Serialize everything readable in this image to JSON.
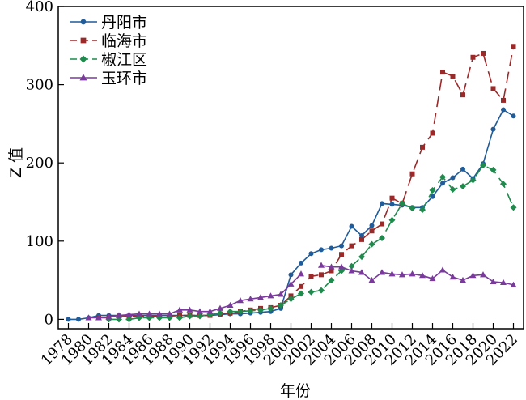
{
  "chart_data": {
    "type": "line",
    "title": "",
    "xlabel": "年份",
    "ylabel": "Z 值",
    "xlim": [
      1977,
      2023
    ],
    "ylim": [
      -12,
      400
    ],
    "y_ticks": [
      0,
      100,
      200,
      300,
      400
    ],
    "x_ticks": [
      1978,
      1980,
      1982,
      1984,
      1986,
      1988,
      1990,
      1992,
      1994,
      1996,
      1998,
      2000,
      2002,
      2004,
      2006,
      2008,
      2010,
      2012,
      2014,
      2016,
      2018,
      2020,
      2022
    ],
    "grid": false,
    "legend_position": "top-left",
    "series": [
      {
        "name": "丹阳市",
        "color": "#1f5c99",
        "marker": "circle",
        "line_style": "solid",
        "points": [
          [
            1978,
            0
          ],
          [
            1979,
            0
          ],
          [
            1980,
            2
          ],
          [
            1981,
            5
          ],
          [
            1982,
            5
          ],
          [
            1983,
            5
          ],
          [
            1984,
            5
          ],
          [
            1985,
            5
          ],
          [
            1986,
            5
          ],
          [
            1987,
            5
          ],
          [
            1988,
            5
          ],
          [
            1989,
            5
          ],
          [
            1990,
            5
          ],
          [
            1991,
            5
          ],
          [
            1992,
            5
          ],
          [
            1993,
            6
          ],
          [
            1994,
            7
          ],
          [
            1995,
            7
          ],
          [
            1996,
            8
          ],
          [
            1997,
            9
          ],
          [
            1998,
            10
          ],
          [
            1999,
            14
          ],
          [
            2000,
            57
          ],
          [
            2001,
            72
          ],
          [
            2002,
            84
          ],
          [
            2003,
            89
          ],
          [
            2004,
            91
          ],
          [
            2005,
            94
          ],
          [
            2006,
            119
          ],
          [
            2007,
            107
          ],
          [
            2008,
            120
          ],
          [
            2009,
            148
          ],
          [
            2010,
            147
          ],
          [
            2011,
            146
          ],
          [
            2012,
            143
          ],
          [
            2013,
            143
          ],
          [
            2014,
            157
          ],
          [
            2015,
            174
          ],
          [
            2016,
            181
          ],
          [
            2017,
            192
          ],
          [
            2018,
            180
          ],
          [
            2019,
            199
          ],
          [
            2020,
            243
          ],
          [
            2021,
            268
          ],
          [
            2022,
            260
          ]
        ]
      },
      {
        "name": "临海市",
        "color": "#9a2a2a",
        "marker": "square",
        "line_style": "dashed",
        "points": [
          [
            1981,
            2
          ],
          [
            1982,
            2
          ],
          [
            1983,
            3
          ],
          [
            1984,
            4
          ],
          [
            1985,
            4
          ],
          [
            1986,
            4
          ],
          [
            1987,
            4
          ],
          [
            1988,
            4
          ],
          [
            1989,
            5
          ],
          [
            1990,
            5
          ],
          [
            1991,
            5
          ],
          [
            1992,
            5
          ],
          [
            1993,
            7
          ],
          [
            1994,
            8
          ],
          [
            1995,
            10
          ],
          [
            1996,
            12
          ],
          [
            1997,
            14
          ],
          [
            1998,
            15
          ],
          [
            1999,
            18
          ],
          [
            2000,
            30
          ],
          [
            2001,
            42
          ],
          [
            2002,
            55
          ],
          [
            2003,
            57
          ],
          [
            2004,
            62
          ],
          [
            2005,
            83
          ],
          [
            2006,
            94
          ],
          [
            2007,
            102
          ],
          [
            2008,
            113
          ],
          [
            2009,
            122
          ],
          [
            2010,
            155
          ],
          [
            2011,
            148
          ],
          [
            2012,
            186
          ],
          [
            2013,
            220
          ],
          [
            2014,
            238
          ],
          [
            2015,
            316
          ],
          [
            2016,
            311
          ],
          [
            2017,
            287
          ],
          [
            2018,
            335
          ],
          [
            2019,
            340
          ],
          [
            2020,
            295
          ],
          [
            2021,
            280
          ],
          [
            2022,
            349
          ]
        ]
      },
      {
        "name": "椒江区",
        "color": "#1e8a4c",
        "marker": "diamond",
        "line_style": "dashed",
        "points": [
          [
            1982,
            0
          ],
          [
            1983,
            0
          ],
          [
            1984,
            0
          ],
          [
            1985,
            2
          ],
          [
            1986,
            2
          ],
          [
            1987,
            2
          ],
          [
            1988,
            2
          ],
          [
            1989,
            2
          ],
          [
            1990,
            4
          ],
          [
            1991,
            4
          ],
          [
            1992,
            6
          ],
          [
            1993,
            8
          ],
          [
            1994,
            10
          ],
          [
            1995,
            10
          ],
          [
            1996,
            11
          ],
          [
            1997,
            12
          ],
          [
            1998,
            14
          ],
          [
            1999,
            18
          ],
          [
            2000,
            26
          ],
          [
            2001,
            33
          ],
          [
            2002,
            35
          ],
          [
            2003,
            37
          ],
          [
            2004,
            50
          ],
          [
            2005,
            62
          ],
          [
            2006,
            68
          ],
          [
            2007,
            80
          ],
          [
            2008,
            96
          ],
          [
            2009,
            104
          ],
          [
            2010,
            127
          ],
          [
            2011,
            148
          ],
          [
            2012,
            142
          ],
          [
            2013,
            140
          ],
          [
            2014,
            165
          ],
          [
            2015,
            182
          ],
          [
            2016,
            166
          ],
          [
            2017,
            170
          ],
          [
            2018,
            178
          ],
          [
            2019,
            197
          ],
          [
            2020,
            191
          ],
          [
            2021,
            173
          ],
          [
            2022,
            143
          ]
        ]
      },
      {
        "name": "玉环市",
        "color": "#7a3a9c",
        "marker": "triangle",
        "line_style": "solid",
        "points": [
          [
            1980,
            2
          ],
          [
            1981,
            2
          ],
          [
            1982,
            3
          ],
          [
            1983,
            5
          ],
          [
            1984,
            6
          ],
          [
            1985,
            7
          ],
          [
            1986,
            7
          ],
          [
            1987,
            7
          ],
          [
            1988,
            7
          ],
          [
            1989,
            12
          ],
          [
            1990,
            12
          ],
          [
            1991,
            10
          ],
          [
            1992,
            10
          ],
          [
            1993,
            14
          ],
          [
            1994,
            18
          ],
          [
            1995,
            24
          ],
          [
            1996,
            26
          ],
          [
            1997,
            28
          ],
          [
            1998,
            30
          ],
          [
            1999,
            32
          ],
          [
            2000,
            45
          ],
          [
            2001,
            58
          ]
        ]
      },
      {
        "name": "",
        "color": "#7a3a9c",
        "marker": "triangle",
        "line_style": "solid",
        "points": [
          [
            2003,
            69
          ],
          [
            2004,
            67
          ],
          [
            2005,
            67
          ],
          [
            2006,
            62
          ],
          [
            2007,
            60
          ],
          [
            2008,
            50
          ],
          [
            2009,
            60
          ],
          [
            2010,
            58
          ],
          [
            2011,
            57
          ],
          [
            2012,
            58
          ],
          [
            2013,
            56
          ],
          [
            2014,
            52
          ],
          [
            2015,
            63
          ],
          [
            2016,
            54
          ],
          [
            2017,
            50
          ],
          [
            2018,
            56
          ],
          [
            2019,
            57
          ],
          [
            2020,
            48
          ],
          [
            2021,
            47
          ],
          [
            2022,
            44
          ]
        ]
      }
    ]
  }
}
